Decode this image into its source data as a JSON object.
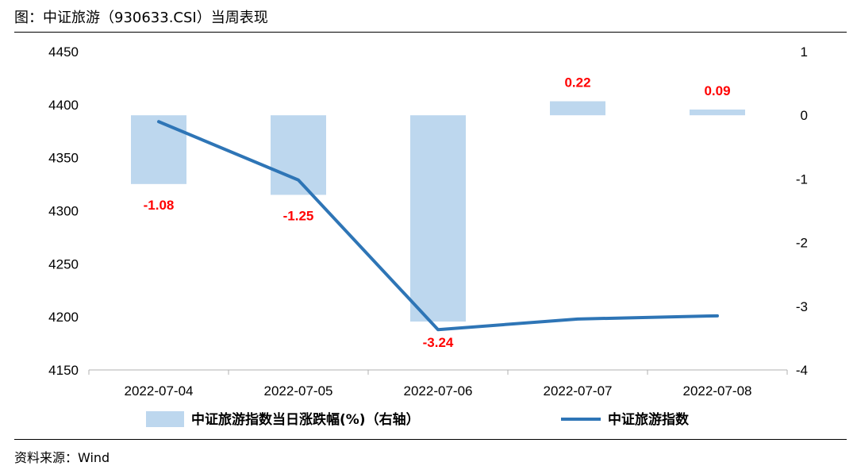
{
  "figure_title": "图：中证旅游（930633.CSI）当周表现",
  "source": "资料来源：Wind",
  "chart_data": {
    "type": "bar+line",
    "categories": [
      "2022-07-04",
      "2022-07-05",
      "2022-07-06",
      "2022-07-07",
      "2022-07-08"
    ],
    "series": [
      {
        "name": "中证旅游指数当日涨跌幅(%)（右轴）",
        "type": "bar",
        "axis": "right",
        "values": [
          -1.08,
          -1.25,
          -3.24,
          0.22,
          0.09
        ],
        "data_labels": [
          "-1.08",
          "-1.25",
          "-3.24",
          "0.22",
          "0.09"
        ],
        "color": "#bdd7ee"
      },
      {
        "name": "中证旅游指数",
        "type": "line",
        "axis": "left",
        "values": [
          4384,
          4329,
          4188,
          4198,
          4201
        ],
        "color": "#2e75b6"
      }
    ],
    "left_axis": {
      "ylim": [
        4150,
        4450
      ],
      "ticks": [
        "4150",
        "4200",
        "4250",
        "4300",
        "4350",
        "4400",
        "4450"
      ]
    },
    "right_axis": {
      "ylim": [
        -4,
        1
      ],
      "ticks": [
        "-4",
        "-3",
        "-2",
        "-1",
        "0",
        "1"
      ]
    },
    "label_color": "#ff0000",
    "grid": false,
    "legend_position": "bottom"
  }
}
